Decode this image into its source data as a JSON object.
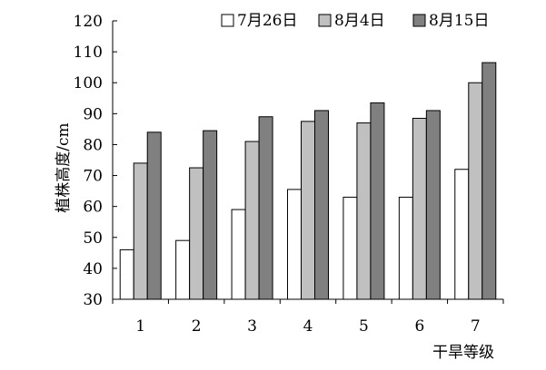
{
  "chart_data": {
    "type": "bar",
    "categories": [
      "1",
      "2",
      "3",
      "4",
      "5",
      "6",
      "7"
    ],
    "series": [
      {
        "name": "7月26日",
        "color": "#ffffff",
        "values": [
          46,
          49,
          59,
          65.5,
          63,
          63,
          72
        ]
      },
      {
        "name": "8月4日",
        "color": "#c0c0c0",
        "values": [
          74,
          72.5,
          81,
          87.5,
          87,
          88.5,
          100
        ]
      },
      {
        "name": "8月15日",
        "color": "#808080",
        "values": [
          84,
          84.5,
          89,
          91,
          93.5,
          91,
          106.5
        ]
      }
    ],
    "ylabel": "植株高度/cm",
    "xlabel": "干旱等级",
    "ylim": [
      30,
      120
    ],
    "yticks": [
      30,
      40,
      50,
      60,
      70,
      80,
      90,
      100,
      110,
      120
    ],
    "grid": false,
    "legend": "top"
  }
}
